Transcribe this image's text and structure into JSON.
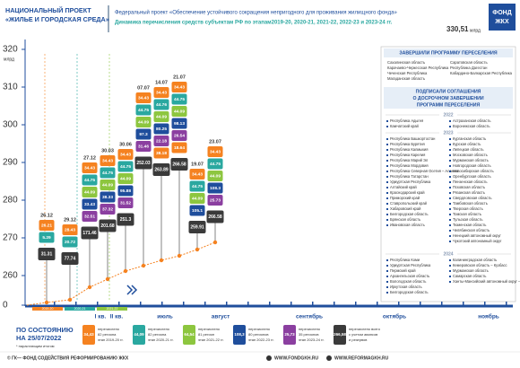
{
  "header": {
    "project": [
      "НАЦИОНАЛЬНЫЙ ПРОЕКТ",
      "«ЖИЛЬЕ И ГОРОДСКАЯ СРЕДА»"
    ],
    "federal_project": "Федеральный проект «Обеспечение устойчивого сокращения непригодного для проживания жилищного фонда»",
    "subtitle": "Динамика перечисления средств субъектам РФ по этапам2019-20, 2020-21, 2021-22, 2022-23 и 2023-24 гг.",
    "total": "330,51",
    "total_unit": "млрд",
    "logo": [
      "ФОНД",
      "ЖКХ"
    ]
  },
  "axis": {
    "ticks": [
      "320",
      "310",
      "300",
      "290",
      "280",
      "270",
      "260",
      "0"
    ],
    "unit": "млрд",
    "months": [
      "I кв.",
      "II кв.",
      "июль",
      "август",
      "сентябрь",
      "октябрь",
      "ноябрь"
    ],
    "stages": [
      "2019-20",
      "2020-21",
      "2021-22"
    ]
  },
  "columns": [
    {
      "date": "26.12",
      "blocks": [
        "26.21",
        "5.29"
      ],
      "total": "31.31"
    },
    {
      "date": "29.12",
      "blocks": [
        "28.43",
        "20.72"
      ],
      "total": "77.74"
    },
    {
      "date": "27.12",
      "blocks": [
        "34.43",
        "44.75",
        "44.09",
        "33.43",
        "32.51"
      ],
      "total": "171.46"
    },
    {
      "date": "30.03",
      "blocks": [
        "34.43",
        "44.75",
        "44.09",
        "38.33",
        "37.32"
      ],
      "total": "201.68"
    },
    {
      "date": "30.06",
      "blocks": [
        "34.43",
        "44.75",
        "44.09",
        "95.88",
        "31.52"
      ],
      "total": "251.3"
    },
    {
      "date": "07.07",
      "blocks": [
        "34.43",
        "44.75",
        "44.09",
        "97.3",
        "31.46"
      ],
      "total": "252.03"
    },
    {
      "date": "14.07",
      "blocks": [
        "34.43",
        "44.76",
        "44.09",
        "80.25",
        "22.18",
        "38.18"
      ],
      "total": "263.89"
    },
    {
      "date": "21.07",
      "blocks": [
        "34.43",
        "44.75",
        "44.09",
        "98.13",
        "26.54",
        "18.64"
      ],
      "total": "266.58"
    },
    {
      "date": "19.07",
      "blocks": [
        "34.43",
        "44.75",
        "44.09",
        "105.1"
      ],
      "total": "259.91"
    },
    {
      "date": "23.07",
      "blocks": [
        "34.43",
        "44.75",
        "44.09",
        "108.3",
        "25.73"
      ],
      "total": "266.58"
    }
  ],
  "status": {
    "label": [
      "ПО СОСТОЯНИЮ",
      "НА 25/07/2022"
    ],
    "note": "* нарастающим итогом"
  },
  "legend": [
    {
      "value": "34,43",
      "color": "#f58220",
      "text": [
        "перечислено",
        "82 региона",
        "этап 2019-20 гг."
      ]
    },
    {
      "value": "44,09",
      "color": "#2aa8a0",
      "text": [
        "перечислено",
        "82 региона",
        "этап 2020-21 гг."
      ]
    },
    {
      "value": "64,54",
      "color": "#8dc63f",
      "text": [
        "перечислено",
        "81 регион",
        "этап 2021-22 гг."
      ]
    },
    {
      "value": "108,3",
      "color": "#1f4e9c",
      "text": [
        "перечислено",
        "80 регионов",
        "этап 2022-23 гг."
      ]
    },
    {
      "value": "25,73",
      "color": "#8b3fa0",
      "text": [
        "перечислено",
        "35 регионов",
        "этап 2023-24 гг."
      ]
    },
    {
      "value": "266,58",
      "color": "#3a3a3a",
      "text": [
        "перечислено всего",
        "с учетом авансов",
        "и резервов"
      ]
    }
  ],
  "panel": {
    "completed_title": "ЗАВЕРШИЛИ ПРОГРАММУ ПЕРЕСЕЛЕНИЯ",
    "completed": [
      [
        "Сахалинская область",
        "Карачаево-Черкесская Республика",
        "Чеченская Республика",
        "Магаданская область"
      ],
      [
        "Саратовская область",
        "Республика Дагестан",
        "Кабардино-Балкарская Республика"
      ]
    ],
    "signed_title": [
      "ПОДПИСАЛИ СОГЛАШЕНИЯ",
      "О ДОСРОЧНОМ ЗАВЕРШЕНИИ",
      "ПРОГРАММ ПЕРЕСЕЛЕНИЯ"
    ],
    "years": [
      {
        "year": "2022",
        "regions": [
          [
            "Республика Адыгея",
            "Камчатский край"
          ],
          [
            "Астраханская область",
            "Воронежская область"
          ]
        ]
      },
      {
        "year": "2023",
        "regions": [
          [
            "Республика Башкортостан",
            "Республика Бурятия",
            "Республика Калмыкия",
            "Республика Карелия",
            "Республика Марий Эл",
            "Республика Мордовия",
            "Республика Северная Осетия – Алания",
            "Республика Татарстан",
            "Удмуртская Республика",
            "Алтайский край",
            "Краснодарский край",
            "Приморский край",
            "Ставропольский край",
            "Хабаровский край",
            "Белгородская область",
            "Брянская область",
            "Ивановская область"
          ],
          [
            "Курганская область",
            "Курская область",
            "Липецкая область",
            "Московская область",
            "Мурманская область",
            "Новгородская область",
            "Новосибирская область",
            "Оренбургская область",
            "Пензенская область",
            "Псковская область",
            "Рязанская область",
            "Свердловская область",
            "Тамбовская область",
            "Тверская область",
            "Томская область",
            "Тульская область",
            "Тюменская область",
            "Челябинская область",
            "Ненецкий автономный округ",
            "Чукотский автономный округ"
          ]
        ]
      },
      {
        "year": "2024",
        "regions": [
          [
            "Республика Коми",
            "Удмуртская Республика",
            "Пермский край",
            "Архангельская область",
            "Вологодская область",
            "Иркутская область",
            "Белгородская область"
          ],
          [
            "Калининградская область",
            "Кемеровская область – Кузбасс",
            "Мурманская область",
            "Самарская область",
            "Ханты-Мансийский автономный округ – Югра"
          ]
        ]
      }
    ]
  },
  "footer": [
    "© ГК— ФОНД СОДЕЙСТВИЯ РЕФОРМИРОВАНИЮ ЖКХ",
    "WWW.FONDGKH.RU",
    "WWW.REFORMAGKH.RU"
  ]
}
